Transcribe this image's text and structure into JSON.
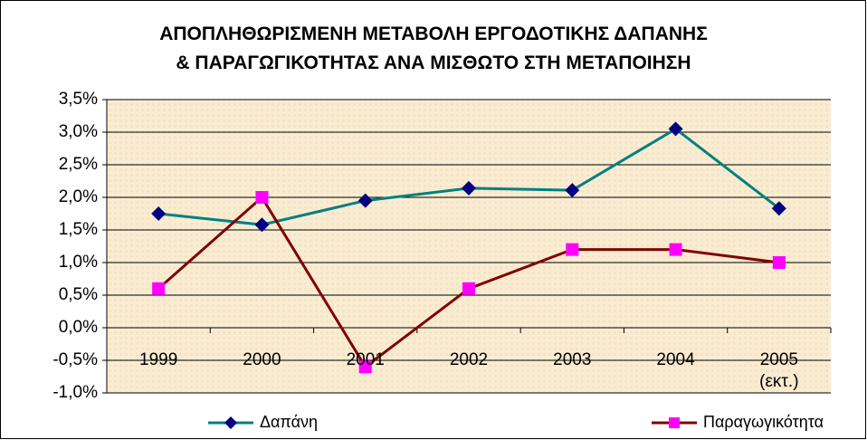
{
  "chart_data": {
    "type": "line",
    "title": "ΑΠΟΠΛΗΘΩΡΙΣΜΕΝΗ ΜΕΤΑΒΟΛΗ ΕΡΓΟΔΟΤΙΚΗΣ ΔΑΠΑΝΗΣ\n& ΠΑΡΑΓΩΓΙΚΟΤΗΤΑΣ ΑΝΑ ΜΙΣΘΩΤΟ ΣΤΗ ΜΕΤΑΠΟΙΗΣΗ",
    "categories": [
      "1999",
      "2000",
      "2001",
      "2002",
      "2003",
      "2004",
      "2005\n(εκτ.)"
    ],
    "series": [
      {
        "name": "Δαπάνη",
        "color": "#008080",
        "marker": "diamond",
        "marker_color": "#000080",
        "values": [
          1.75,
          1.58,
          1.95,
          2.14,
          2.11,
          3.05,
          1.83
        ]
      },
      {
        "name": "Παραγωγικότητα",
        "color": "#800000",
        "marker": "square",
        "marker_color": "#ff00ff",
        "values": [
          0.6,
          2.0,
          -0.6,
          0.6,
          1.2,
          1.2,
          1.0
        ]
      }
    ],
    "ylim": [
      -1.0,
      3.5
    ],
    "yticks": [
      {
        "value": -1.0,
        "label": "-1,0%"
      },
      {
        "value": -0.5,
        "label": "-0,5%"
      },
      {
        "value": 0.0,
        "label": "0,0%"
      },
      {
        "value": 0.5,
        "label": "0,5%"
      },
      {
        "value": 1.0,
        "label": "1,0%"
      },
      {
        "value": 1.5,
        "label": "1,5%"
      },
      {
        "value": 2.0,
        "label": "2,0%"
      },
      {
        "value": 2.5,
        "label": "2,5%"
      },
      {
        "value": 3.0,
        "label": "3,0%"
      },
      {
        "value": 3.5,
        "label": "3,5%"
      }
    ],
    "grid": true,
    "legend": "bottom"
  }
}
